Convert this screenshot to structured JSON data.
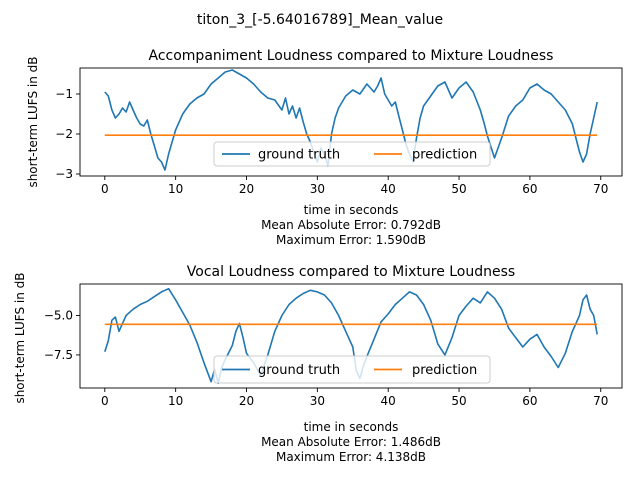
{
  "figure": {
    "suptitle": "titon_3_[-5.64016789]_Mean_value"
  },
  "colors": {
    "ground_truth": "#1f77b4",
    "prediction": "#ff7f0e",
    "axes": "#000000",
    "legend_border": "#cccccc"
  },
  "panels": [
    {
      "title": "Accompaniment Loudness compared to Mixture Loudness",
      "ylabel": "short-term LUFS in dB",
      "xlabel": "time in seconds",
      "mae_text": "Mean Absolute Error: 0.792dB",
      "max_text": "Maximum Error: 1.590dB",
      "legend": [
        "ground truth",
        "prediction"
      ],
      "legend_position": "lower center",
      "xticks": [
        "0",
        "10",
        "20",
        "30",
        "40",
        "50",
        "60",
        "70"
      ],
      "yticks": [
        "−1",
        "−2",
        "−3"
      ]
    },
    {
      "title": "Vocal Loudness compared to Mixture Loudness",
      "ylabel": "short-term LUFS in dB",
      "xlabel": "time in seconds",
      "mae_text": "Mean Absolute Error: 1.486dB",
      "max_text": "Maximum Error: 4.138dB",
      "legend": [
        "ground truth",
        "prediction"
      ],
      "legend_position": "lower center",
      "xticks": [
        "0",
        "10",
        "20",
        "30",
        "40",
        "50",
        "60",
        "70"
      ],
      "yticks": [
        "−5.0",
        "−7.5"
      ]
    }
  ],
  "chart_data": [
    {
      "type": "line",
      "title": "Accompaniment Loudness compared to Mixture Loudness",
      "xlabel": "time in seconds",
      "ylabel": "short-term LUFS in dB",
      "xlim": [
        -3.5,
        73.0
      ],
      "ylim": [
        -3.05,
        -0.35
      ],
      "xticks": [
        0,
        10,
        20,
        30,
        40,
        50,
        60,
        70
      ],
      "yticks": [
        -1,
        -2,
        -3
      ],
      "grid": false,
      "legend": "lower center",
      "series": [
        {
          "name": "ground truth",
          "x": [
            0,
            0.5,
            1,
            1.5,
            2,
            2.5,
            3,
            3.5,
            4,
            4.5,
            5,
            5.5,
            6,
            6.5,
            7,
            7.5,
            8,
            8.5,
            9,
            9.5,
            10,
            11,
            12,
            13,
            14,
            15,
            16,
            17,
            18,
            19,
            20,
            21,
            22,
            23,
            24,
            25,
            25.5,
            26,
            26.5,
            27,
            27.5,
            28,
            28.5,
            29,
            29.5,
            30,
            30.5,
            31,
            31.5,
            32,
            32.5,
            33,
            34,
            35,
            36,
            37,
            38,
            38.5,
            39,
            39.5,
            40,
            40.5,
            41,
            41.5,
            42,
            42.5,
            43,
            43.5,
            44,
            44.5,
            45,
            46,
            47,
            48,
            49,
            50,
            51,
            52,
            53,
            53.5,
            54,
            55,
            56,
            57,
            58,
            59,
            60,
            61,
            62,
            63,
            64,
            65,
            66,
            66.5,
            67,
            67.5,
            68,
            68.5,
            69,
            69.5
          ],
          "y": [
            -0.95,
            -1.05,
            -1.4,
            -1.6,
            -1.5,
            -1.35,
            -1.45,
            -1.2,
            -1.4,
            -1.6,
            -1.75,
            -1.8,
            -1.65,
            -2.0,
            -2.3,
            -2.6,
            -2.7,
            -2.9,
            -2.5,
            -2.2,
            -1.9,
            -1.5,
            -1.25,
            -1.1,
            -1.0,
            -0.75,
            -0.6,
            -0.45,
            -0.4,
            -0.5,
            -0.6,
            -0.75,
            -0.95,
            -1.1,
            -1.15,
            -1.4,
            -1.1,
            -1.5,
            -1.3,
            -1.6,
            -1.35,
            -1.7,
            -2.0,
            -2.2,
            -2.45,
            -2.7,
            -2.35,
            -2.5,
            -2.8,
            -2.0,
            -1.6,
            -1.35,
            -1.05,
            -0.9,
            -1.0,
            -0.75,
            -0.95,
            -0.8,
            -0.6,
            -1.0,
            -1.15,
            -1.3,
            -1.2,
            -1.55,
            -1.9,
            -2.25,
            -2.5,
            -2.7,
            -2.1,
            -1.6,
            -1.3,
            -1.05,
            -0.8,
            -0.7,
            -1.1,
            -0.85,
            -0.7,
            -0.95,
            -1.4,
            -1.7,
            -2.05,
            -2.6,
            -2.1,
            -1.55,
            -1.3,
            -1.15,
            -0.85,
            -0.75,
            -0.9,
            -1.0,
            -1.2,
            -1.4,
            -1.75,
            -2.1,
            -2.45,
            -2.7,
            -2.5,
            -2.0,
            -1.6,
            -1.2
          ]
        },
        {
          "name": "prediction",
          "x": [
            0,
            69.5
          ],
          "y": [
            -2.03,
            -2.03
          ]
        }
      ]
    },
    {
      "type": "line",
      "title": "Vocal Loudness compared to Mixture Loudness",
      "xlabel": "time in seconds",
      "ylabel": "short-term LUFS in dB",
      "xlim": [
        -3.5,
        73.0
      ],
      "ylim": [
        -9.6,
        -3.0
      ],
      "xticks": [
        0,
        10,
        20,
        30,
        40,
        50,
        60,
        70
      ],
      "yticks": [
        -5.0,
        -7.5
      ],
      "grid": false,
      "legend": "lower center",
      "series": [
        {
          "name": "ground truth",
          "x": [
            0,
            0.5,
            1,
            1.5,
            2,
            2.5,
            3,
            4,
            5,
            6,
            7,
            8,
            9,
            10,
            11,
            12,
            13,
            14,
            15,
            15.5,
            16,
            16.5,
            17,
            18,
            18.5,
            19,
            19.5,
            20,
            21,
            22,
            23,
            24,
            25,
            26,
            27,
            28,
            29,
            30,
            31,
            32,
            33,
            34,
            35,
            35.5,
            36,
            36.5,
            37,
            38,
            39,
            40,
            41,
            42,
            43,
            44,
            45,
            46,
            47,
            48,
            49,
            50,
            51,
            52,
            53,
            54,
            55,
            56,
            57,
            58,
            59,
            60,
            61,
            62,
            63,
            64,
            65,
            66,
            67,
            67.5,
            68,
            68.5,
            69,
            69.5
          ],
          "y": [
            -7.3,
            -6.6,
            -5.3,
            -5.1,
            -6.0,
            -5.5,
            -5.0,
            -4.6,
            -4.3,
            -4.1,
            -3.8,
            -3.5,
            -3.3,
            -4.0,
            -4.8,
            -5.6,
            -6.7,
            -8.0,
            -9.2,
            -8.4,
            -9.3,
            -8.3,
            -7.8,
            -6.9,
            -6.0,
            -5.5,
            -6.4,
            -7.4,
            -8.0,
            -8.8,
            -7.5,
            -6.0,
            -5.0,
            -4.3,
            -3.9,
            -3.6,
            -3.4,
            -3.5,
            -3.7,
            -4.2,
            -5.0,
            -6.0,
            -7.0,
            -8.5,
            -9.0,
            -8.2,
            -7.6,
            -6.5,
            -5.4,
            -4.9,
            -4.3,
            -3.9,
            -3.5,
            -3.7,
            -4.3,
            -5.3,
            -6.8,
            -7.5,
            -6.4,
            -5.0,
            -4.4,
            -3.9,
            -4.2,
            -3.5,
            -3.9,
            -4.6,
            -5.8,
            -6.4,
            -7.0,
            -6.5,
            -6.2,
            -7.0,
            -7.6,
            -8.3,
            -7.4,
            -6.0,
            -5.0,
            -4.0,
            -3.7,
            -4.6,
            -5.0,
            -6.2
          ]
        },
        {
          "name": "prediction",
          "x": [
            0,
            69.5
          ],
          "y": [
            -5.56,
            -5.56
          ]
        }
      ]
    }
  ]
}
